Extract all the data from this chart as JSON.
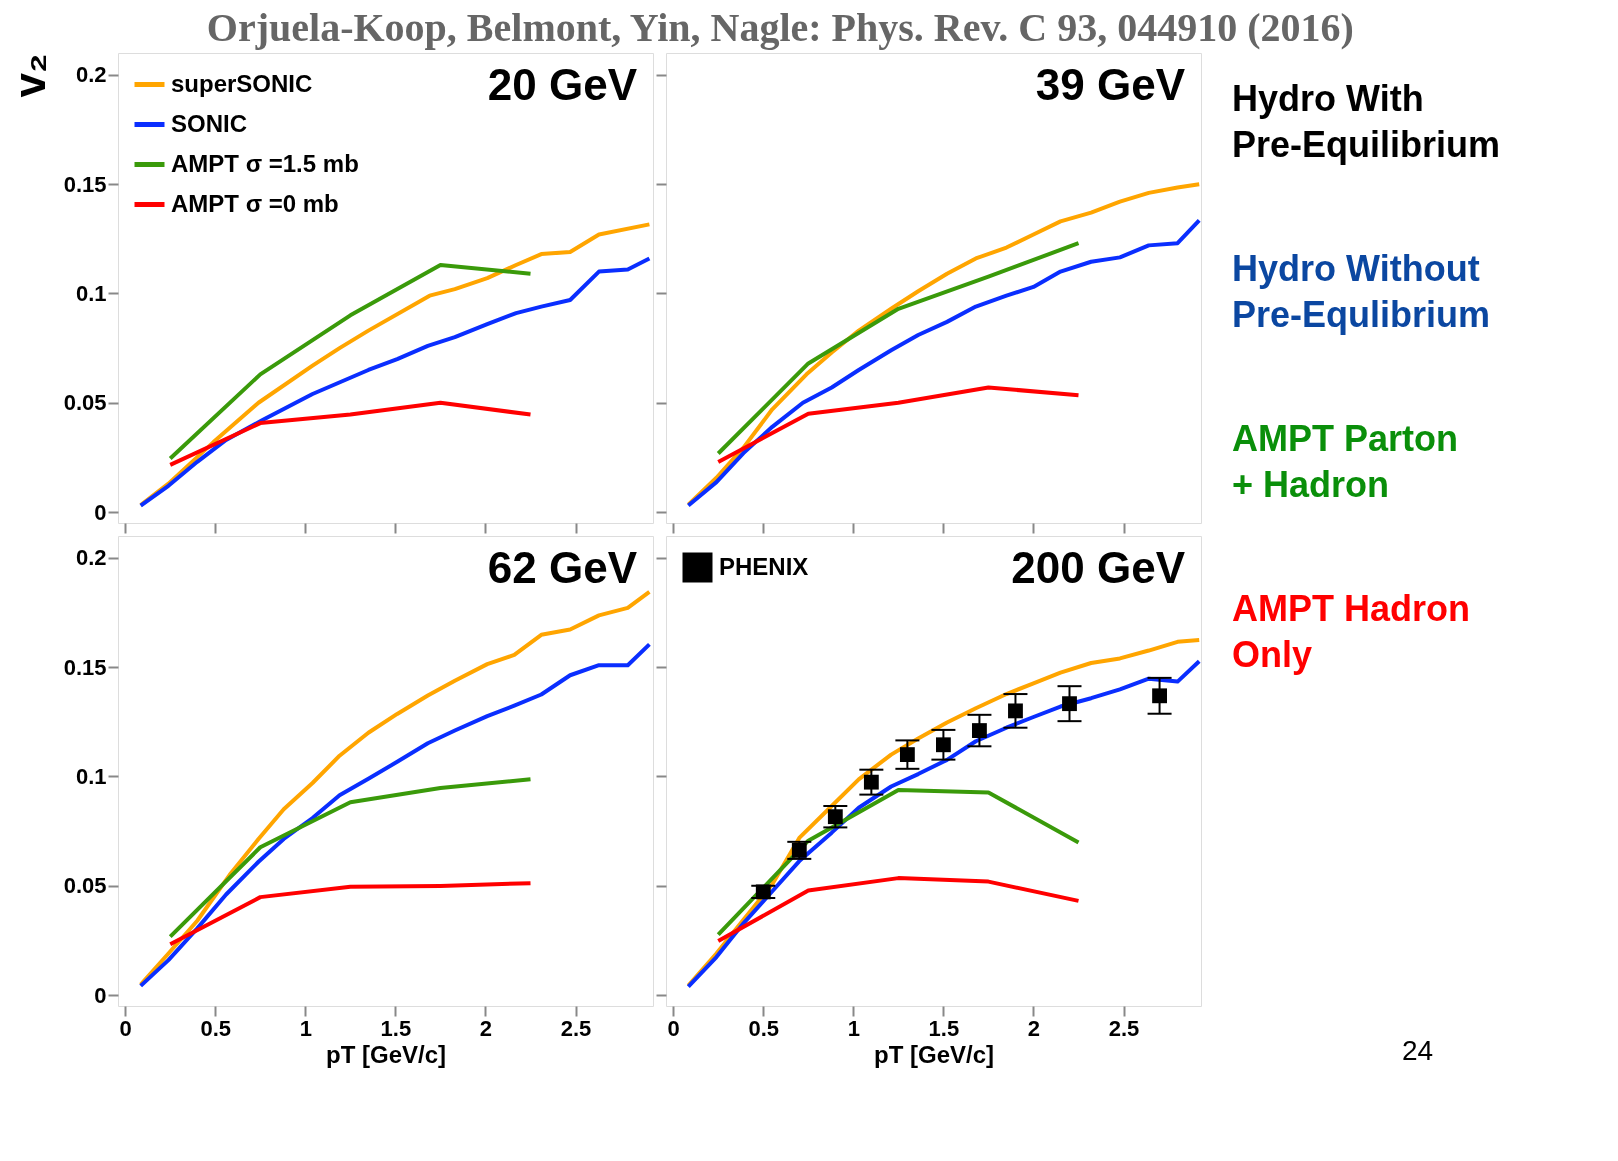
{
  "chart_data": [
    {
      "type": "line",
      "title": "Orjuela-Koop, Belmont, Yin, Nagle: Phys. Rev. C 93, 044910 (2016)",
      "ylabel": "v₂",
      "annotations": [
        "20 GeV"
      ],
      "xlim": [
        -0.04,
        2.93
      ],
      "ylim": [
        -0.005,
        0.21
      ],
      "xticks": [
        0,
        0.5,
        1,
        1.5,
        2,
        2.5
      ],
      "yticks": [
        0,
        0.05,
        0.1,
        0.15,
        0.2
      ],
      "tick_labels": "y",
      "legend": "top left",
      "series": [
        {
          "name": "superSONIC",
          "color": "#ffa500",
          "x": [
            0.086,
            0.24,
            0.49,
            0.74,
            1.04,
            1.19,
            1.35,
            1.69,
            1.83,
            2.01,
            2.17,
            2.31,
            2.47,
            2.63,
            2.91
          ],
          "values": [
            0.0032,
            0.013,
            0.032,
            0.05,
            0.067,
            0.075,
            0.083,
            0.099,
            0.102,
            0.107,
            0.113,
            0.118,
            0.119,
            0.127,
            0.1316
          ]
        },
        {
          "name": "SONIC",
          "color": "#0a2eff",
          "x": [
            0.086,
            0.24,
            0.4,
            0.56,
            0.76,
            1.04,
            1.35,
            1.51,
            1.68,
            1.83,
            2.01,
            2.17,
            2.31,
            2.47,
            2.63,
            2.79,
            2.91
          ],
          "values": [
            0.003,
            0.012,
            0.023,
            0.033,
            0.042,
            0.054,
            0.065,
            0.07,
            0.076,
            0.08,
            0.086,
            0.091,
            0.094,
            0.097,
            0.11,
            0.111,
            0.116
          ]
        },
        {
          "name": "AMPT σ =1.5 mb",
          "color": "#3a9a0a",
          "x": [
            0.25,
            0.75,
            1.25,
            1.75,
            2.25
          ],
          "values": [
            0.0245,
            0.063,
            0.09,
            0.113,
            0.109
          ]
        },
        {
          "name": "AMPT σ =0 mb",
          "color": "#ff0000",
          "x": [
            0.25,
            0.75,
            1.25,
            1.75,
            2.25
          ],
          "values": [
            0.0216,
            0.0407,
            0.0446,
            0.05,
            0.0446
          ]
        }
      ]
    },
    {
      "type": "line",
      "annotations": [
        "39 GeV"
      ],
      "xlim": [
        -0.04,
        2.93
      ],
      "ylim": [
        -0.005,
        0.21
      ],
      "xticks": [
        0,
        0.5,
        1,
        1.5,
        2,
        2.5
      ],
      "yticks": [
        0,
        0.05,
        0.1,
        0.15,
        0.2
      ],
      "tick_labels": false,
      "series": [
        {
          "color": "#ffa500",
          "x": [
            0.084,
            0.24,
            0.39,
            0.55,
            0.74,
            0.88,
            1.03,
            1.21,
            1.36,
            1.52,
            1.68,
            1.85,
            2.0,
            2.15,
            2.32,
            2.48,
            2.64,
            2.8,
            2.92
          ],
          "values": [
            0.0034,
            0.0157,
            0.0295,
            0.047,
            0.063,
            0.073,
            0.083,
            0.093,
            0.101,
            0.109,
            0.116,
            0.121,
            0.127,
            0.133,
            0.137,
            0.142,
            0.146,
            0.1485,
            0.15
          ]
        },
        {
          "color": "#0a2eff",
          "x": [
            0.084,
            0.24,
            0.39,
            0.55,
            0.72,
            0.88,
            1.03,
            1.21,
            1.36,
            1.52,
            1.68,
            1.85,
            2.0,
            2.15,
            2.32,
            2.48,
            2.64,
            2.8,
            2.92
          ],
          "values": [
            0.003,
            0.0137,
            0.027,
            0.039,
            0.05,
            0.057,
            0.065,
            0.074,
            0.081,
            0.087,
            0.094,
            0.099,
            0.103,
            0.11,
            0.1145,
            0.1165,
            0.122,
            0.123,
            0.1334
          ]
        },
        {
          "color": "#3a9a0a",
          "x": [
            0.25,
            0.75,
            1.25,
            1.75,
            2.25
          ],
          "values": [
            0.0268,
            0.068,
            0.093,
            0.1077,
            0.123
          ]
        },
        {
          "color": "#ff0000",
          "x": [
            0.25,
            0.75,
            1.25,
            1.75,
            2.25
          ],
          "values": [
            0.0229,
            0.045,
            0.05,
            0.057,
            0.0534
          ]
        }
      ]
    },
    {
      "type": "line",
      "annotations": [
        "62 GeV"
      ],
      "xlabel": "pT [GeV/c]",
      "xlim": [
        -0.04,
        2.93
      ],
      "ylim": [
        -0.005,
        0.21
      ],
      "xticks": [
        0,
        0.5,
        1,
        1.5,
        2,
        2.5
      ],
      "yticks": [
        0,
        0.05,
        0.1,
        0.15,
        0.2
      ],
      "series": [
        {
          "color": "#ffa500",
          "x": [
            0.086,
            0.24,
            0.4,
            0.58,
            0.74,
            0.88,
            1.04,
            1.19,
            1.35,
            1.51,
            1.68,
            1.83,
            2.01,
            2.16,
            2.31,
            2.47,
            2.63,
            2.79,
            2.91
          ],
          "values": [
            0.0048,
            0.019,
            0.034,
            0.055,
            0.0714,
            0.085,
            0.097,
            0.1095,
            0.12,
            0.1286,
            0.137,
            0.1438,
            0.1514,
            0.1556,
            0.1648,
            0.1672,
            0.1737,
            0.1771,
            0.1844
          ]
        },
        {
          "color": "#0a2eff",
          "x": [
            0.086,
            0.24,
            0.4,
            0.56,
            0.74,
            0.88,
            1.04,
            1.19,
            1.35,
            1.51,
            1.68,
            1.83,
            2.01,
            2.16,
            2.31,
            2.47,
            2.63,
            2.79,
            2.91
          ],
          "values": [
            0.0042,
            0.016,
            0.0305,
            0.046,
            0.061,
            0.0714,
            0.081,
            0.0914,
            0.099,
            0.1067,
            0.1152,
            0.121,
            0.1276,
            0.1324,
            0.1375,
            0.1463,
            0.1509,
            0.1509,
            0.1604
          ]
        },
        {
          "color": "#3a9a0a",
          "x": [
            0.25,
            0.75,
            1.25,
            1.75,
            2.25
          ],
          "values": [
            0.0267,
            0.0676,
            0.0882,
            0.0947,
            0.0987
          ]
        },
        {
          "color": "#ff0000",
          "x": [
            0.25,
            0.75,
            1.25,
            1.75,
            2.25
          ],
          "values": [
            0.0232,
            0.0448,
            0.0495,
            0.0499,
            0.0512
          ]
        }
      ]
    },
    {
      "type": "line",
      "annotations": [
        "200 GeV"
      ],
      "xlabel": "pT [GeV/c]",
      "xlim": [
        -0.04,
        2.93
      ],
      "ylim": [
        -0.005,
        0.21
      ],
      "xticks": [
        0,
        0.5,
        1,
        1.5,
        2,
        2.5
      ],
      "yticks": [
        0,
        0.05,
        0.1,
        0.15,
        0.2
      ],
      "tick_labels": "x",
      "legend": "top left",
      "series": [
        {
          "color": "#ffa500",
          "x": [
            0.084,
            0.24,
            0.39,
            0.55,
            0.7,
            0.88,
            1.03,
            1.21,
            1.36,
            1.52,
            1.68,
            1.85,
            2.0,
            2.15,
            2.32,
            2.48,
            2.64,
            2.8,
            2.92
          ],
          "values": [
            0.0044,
            0.019,
            0.0345,
            0.0507,
            0.0719,
            0.0865,
            0.0987,
            0.11,
            0.1174,
            0.1247,
            0.1312,
            0.1377,
            0.1426,
            0.1475,
            0.1519,
            0.154,
            0.1576,
            0.1616,
            0.1624
          ]
        },
        {
          "color": "#0a2eff",
          "x": [
            0.084,
            0.24,
            0.39,
            0.55,
            0.7,
            0.88,
            1.03,
            1.21,
            1.36,
            1.52,
            1.68,
            1.85,
            2.0,
            2.15,
            2.32,
            2.48,
            2.64,
            2.8,
            2.92
          ],
          "values": [
            0.0039,
            0.0174,
            0.0328,
            0.0475,
            0.0613,
            0.0743,
            0.0857,
            0.0954,
            0.1011,
            0.1076,
            0.1161,
            0.1223,
            0.1272,
            0.132,
            0.1358,
            0.1398,
            0.1447,
            0.1434,
            0.1527
          ]
        },
        {
          "color": "#3a9a0a",
          "x": [
            0.25,
            0.75,
            1.25,
            1.75,
            2.25
          ],
          "values": [
            0.0276,
            0.0706,
            0.0938,
            0.0927,
            0.0698
          ]
        },
        {
          "color": "#ff0000",
          "x": [
            0.25,
            0.75,
            1.25,
            1.75,
            2.25
          ],
          "values": [
            0.0247,
            0.0478,
            0.0535,
            0.0519,
            0.0431
          ]
        },
        {
          "name": "PHENIX",
          "type": "scatter",
          "marker": "square",
          "color": "#000000",
          "x": [
            0.5,
            0.7,
            0.9,
            1.1,
            1.3,
            1.5,
            1.7,
            1.9,
            2.2,
            2.7
          ],
          "values": [
            0.0472,
            0.0662,
            0.0816,
            0.0974,
            0.11,
            0.1145,
            0.121,
            0.13,
            0.1333,
            0.1369
          ],
          "errors": [
            [
              0.0444,
              0.05
            ],
            [
              0.0623,
              0.0701
            ],
            [
              0.0767,
              0.0865
            ],
            [
              0.0917,
              0.1031
            ],
            [
              0.1035,
              0.1165
            ],
            [
              0.1077,
              0.1213
            ],
            [
              0.1138,
              0.1282
            ],
            [
              0.1223,
              0.1377
            ],
            [
              0.1253,
              0.1413
            ],
            [
              0.1287,
              0.1451
            ]
          ]
        }
      ]
    },
    {
      "type": "other",
      "annotations": [
        "Hydro With\nPre-Equilibrium",
        "Hydro Without\nPre-Equlibrium",
        "AMPT Parton\n+ Hadron",
        "AMPT Hadron\nOnly",
        "24"
      ]
    }
  ]
}
